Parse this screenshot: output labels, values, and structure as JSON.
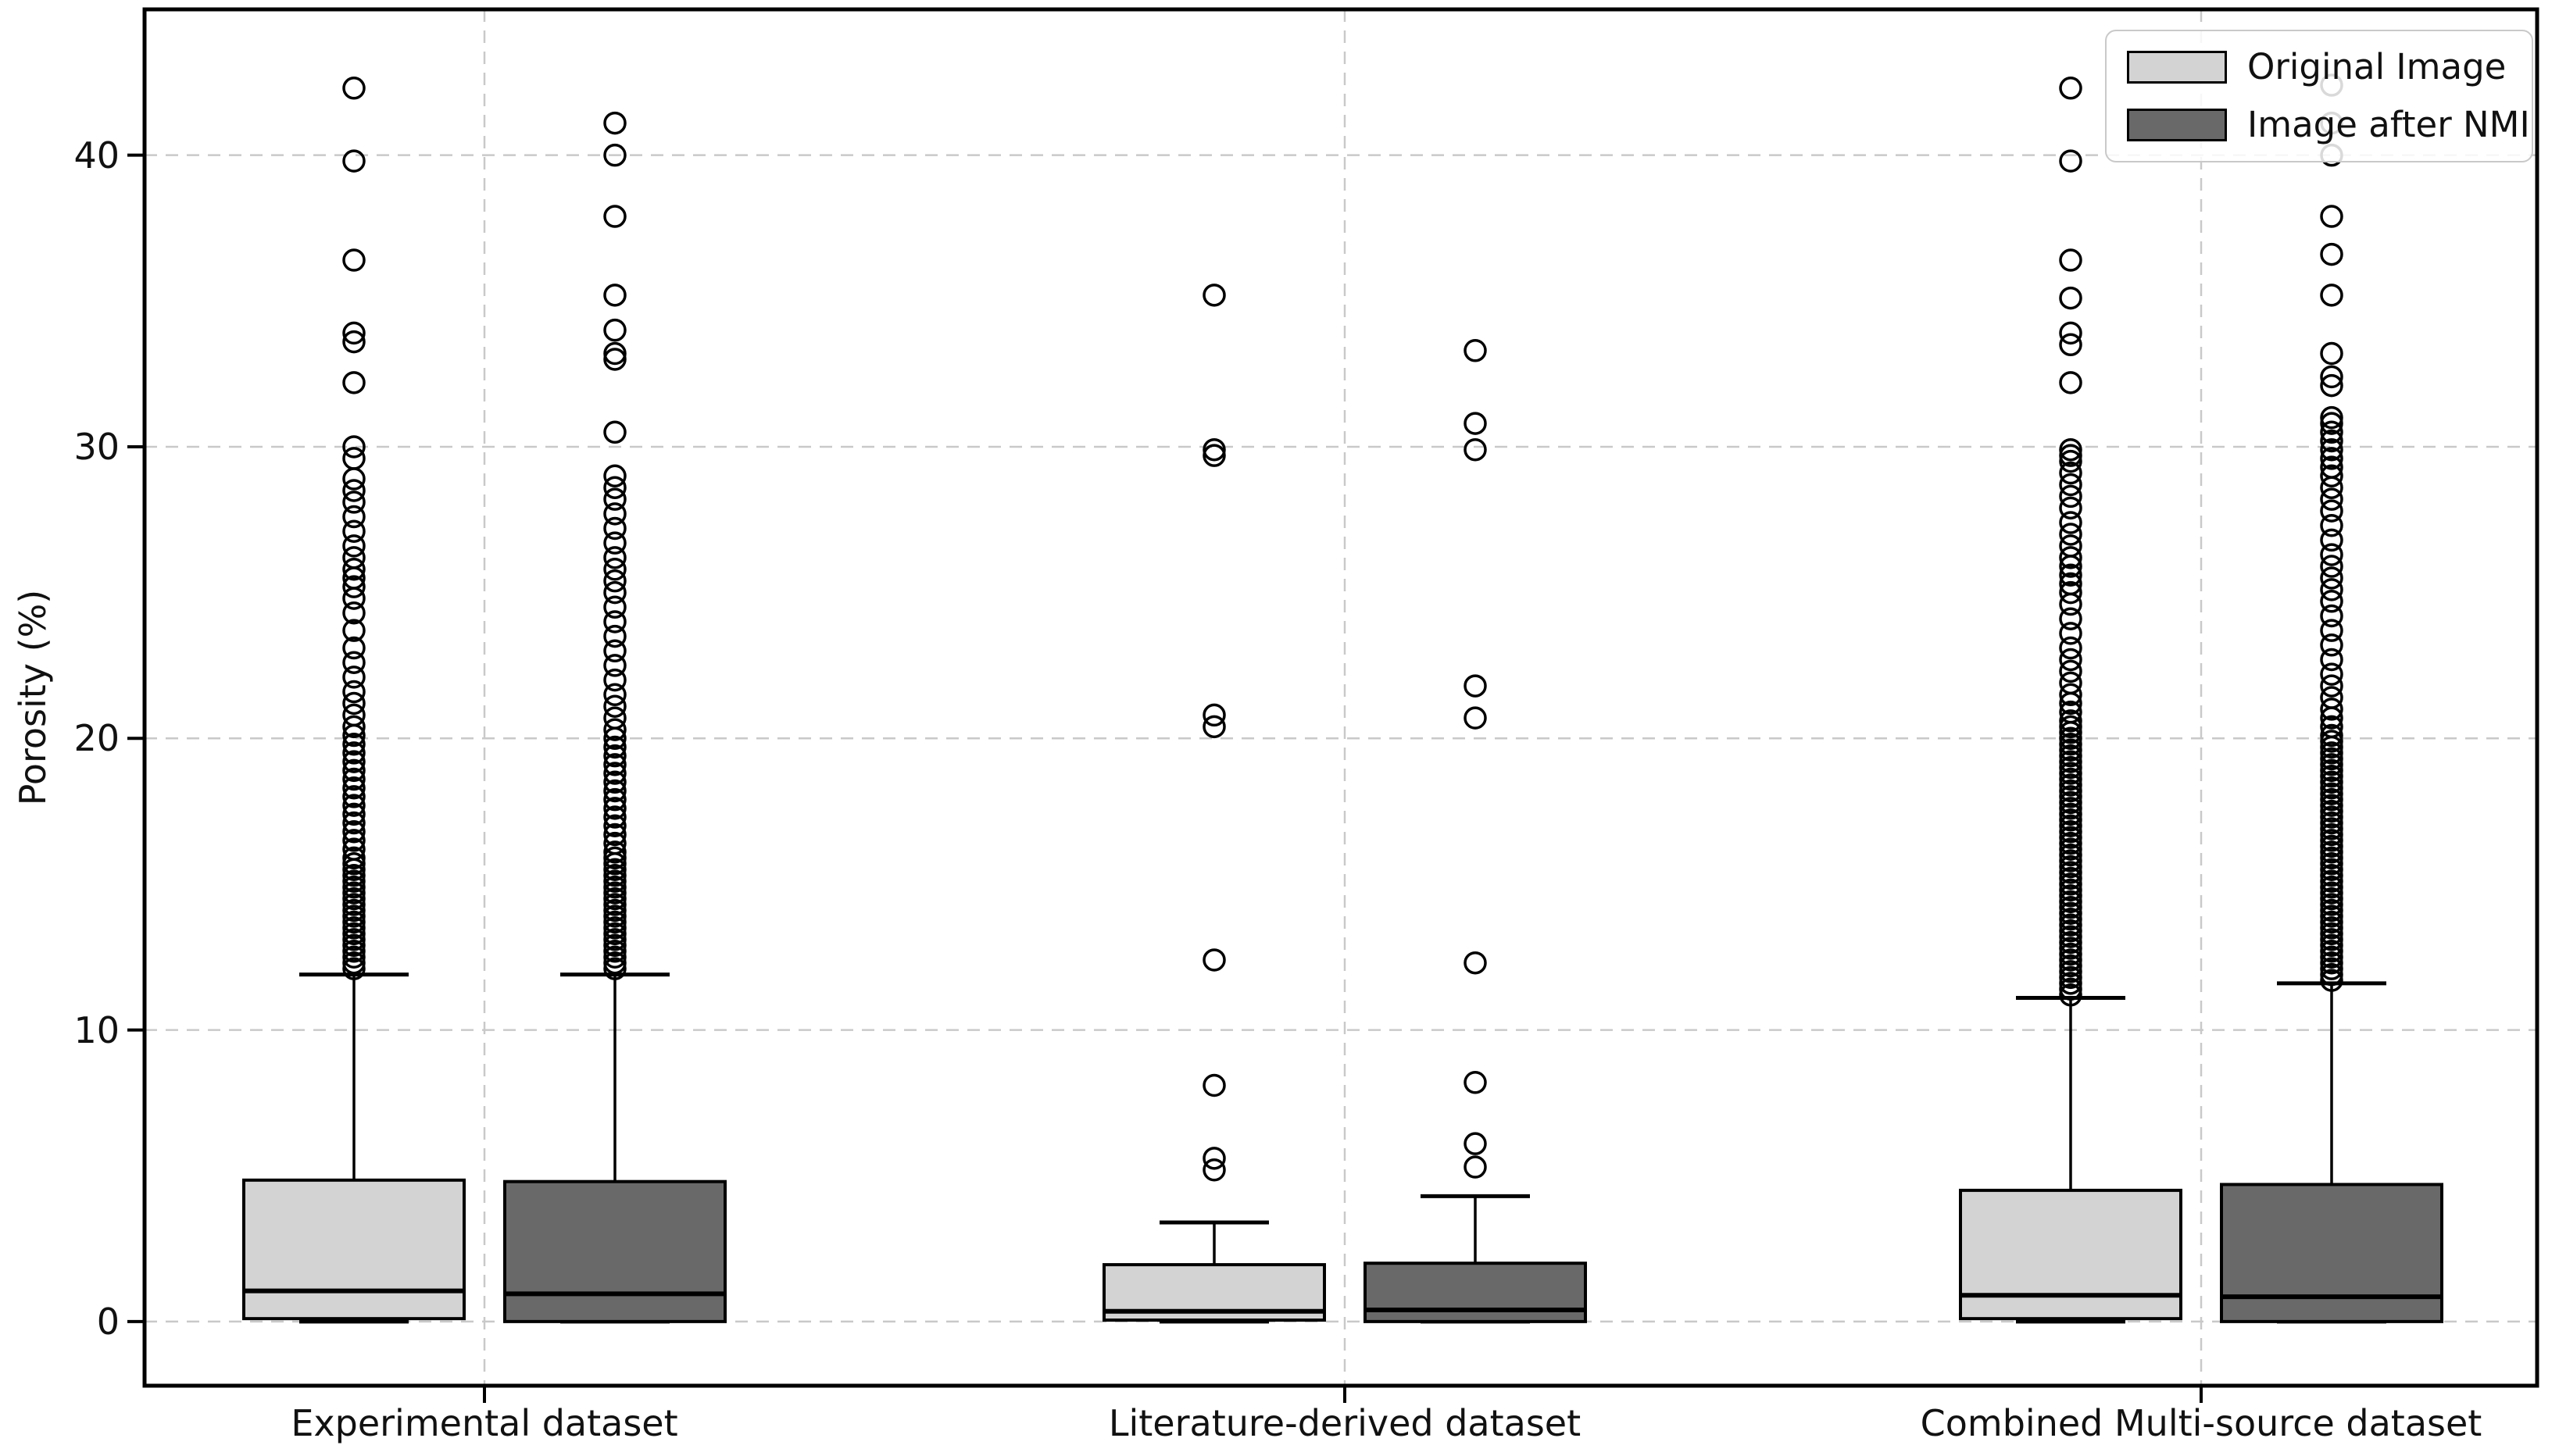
{
  "chart_data": {
    "type": "boxplot",
    "title": "",
    "ylabel": "Porosity (%)",
    "xlabel": "",
    "ylim": [
      -2.2,
      45.0
    ],
    "yticks": [
      0,
      10,
      20,
      30,
      40
    ],
    "ytick_labels": [
      "0",
      "10",
      "20",
      "30",
      "40"
    ],
    "categories": [
      "Experimental dataset",
      "Literature-derived dataset",
      "Combined Multi-source dataset"
    ],
    "grid": {
      "style": "dashed",
      "color": "#c9c9c9",
      "horizontal": true,
      "vertical": true
    },
    "legend_position": "upper right",
    "series": [
      {
        "name": "Original Image",
        "color": "#d3d3d3",
        "boxes": [
          {
            "category": "Experimental dataset",
            "whisker_low": 0.0,
            "q1": 0.1,
            "median": 1.05,
            "q3": 4.85,
            "whisker_high": 11.9,
            "outliers": [
              12.1,
              12.3,
              12.5,
              12.7,
              12.9,
              13.1,
              13.3,
              13.5,
              13.7,
              13.9,
              14.1,
              14.3,
              14.5,
              14.7,
              14.9,
              15.1,
              15.3,
              15.5,
              15.7,
              15.9,
              16.2,
              16.5,
              16.8,
              17.1,
              17.4,
              17.7,
              18.0,
              18.3,
              18.6,
              18.9,
              19.2,
              19.5,
              19.8,
              20.1,
              20.4,
              20.8,
              21.2,
              21.6,
              22.1,
              22.6,
              23.1,
              23.7,
              24.3,
              24.8,
              25.2,
              25.5,
              25.8,
              26.2,
              26.6,
              27.1,
              27.6,
              28.1,
              28.5,
              28.9,
              29.6,
              30.0,
              32.2,
              33.6,
              33.9,
              36.4,
              39.8,
              42.3
            ]
          },
          {
            "category": "Literature-derived dataset",
            "whisker_low": 0.0,
            "q1": 0.05,
            "median": 0.35,
            "q3": 1.95,
            "whisker_high": 3.4,
            "outliers": [
              5.2,
              5.6,
              8.1,
              12.4,
              20.4,
              20.8,
              29.7,
              29.9,
              35.2
            ]
          },
          {
            "category": "Combined Multi-source dataset",
            "whisker_low": 0.0,
            "q1": 0.1,
            "median": 0.9,
            "q3": 4.5,
            "whisker_high": 11.1,
            "outliers": [
              11.2,
              11.4,
              11.6,
              11.8,
              12.0,
              12.2,
              12.4,
              12.6,
              12.8,
              13.0,
              13.2,
              13.4,
              13.6,
              13.8,
              14.0,
              14.2,
              14.4,
              14.6,
              14.8,
              15.0,
              15.2,
              15.4,
              15.6,
              15.8,
              16.0,
              16.2,
              16.4,
              16.6,
              16.8,
              17.0,
              17.2,
              17.4,
              17.6,
              17.8,
              18.0,
              18.2,
              18.4,
              18.6,
              18.8,
              19.0,
              19.2,
              19.4,
              19.6,
              19.8,
              20.0,
              20.2,
              20.4,
              20.6,
              20.9,
              21.2,
              21.5,
              21.9,
              22.3,
              22.7,
              23.1,
              23.6,
              24.1,
              24.6,
              25.0,
              25.3,
              25.6,
              25.9,
              26.2,
              26.6,
              27.0,
              27.4,
              27.9,
              28.3,
              28.7,
              29.1,
              29.5,
              29.7,
              29.9,
              32.2,
              33.5,
              33.9,
              35.1,
              36.4,
              39.8,
              42.3
            ]
          }
        ]
      },
      {
        "name": "Image after NMI",
        "color": "#696969",
        "boxes": [
          {
            "category": "Experimental dataset",
            "whisker_low": 0.0,
            "q1": 0.0,
            "median": 0.95,
            "q3": 4.8,
            "whisker_high": 11.9,
            "outliers": [
              12.1,
              12.3,
              12.5,
              12.7,
              12.9,
              13.1,
              13.3,
              13.5,
              13.7,
              13.9,
              14.1,
              14.3,
              14.5,
              14.7,
              14.9,
              15.1,
              15.3,
              15.5,
              15.7,
              15.9,
              16.1,
              16.4,
              16.7,
              17.0,
              17.3,
              17.6,
              17.9,
              18.2,
              18.5,
              18.8,
              19.1,
              19.4,
              19.7,
              20.0,
              20.3,
              20.7,
              21.1,
              21.5,
              22.0,
              22.5,
              23.0,
              23.5,
              24.0,
              24.5,
              25.0,
              25.4,
              25.8,
              26.2,
              26.7,
              27.2,
              27.7,
              28.2,
              28.6,
              29.0,
              30.5,
              33.0,
              33.2,
              34.0,
              35.2,
              37.9,
              40.0,
              41.1
            ]
          },
          {
            "category": "Literature-derived dataset",
            "whisker_low": 0.0,
            "q1": 0.0,
            "median": 0.4,
            "q3": 2.0,
            "whisker_high": 4.3,
            "outliers": [
              5.3,
              6.1,
              8.2,
              12.3,
              20.7,
              21.8,
              29.9,
              30.8,
              33.3
            ]
          },
          {
            "category": "Combined Multi-source dataset",
            "whisker_low": 0.0,
            "q1": 0.0,
            "median": 0.85,
            "q3": 4.7,
            "whisker_high": 11.6,
            "outliers": [
              11.7,
              11.9,
              12.1,
              12.3,
              12.5,
              12.7,
              12.9,
              13.1,
              13.3,
              13.5,
              13.7,
              13.9,
              14.1,
              14.3,
              14.5,
              14.7,
              14.9,
              15.1,
              15.3,
              15.5,
              15.7,
              15.9,
              16.1,
              16.3,
              16.5,
              16.7,
              16.9,
              17.1,
              17.3,
              17.5,
              17.7,
              17.9,
              18.1,
              18.3,
              18.5,
              18.7,
              18.9,
              19.1,
              19.3,
              19.5,
              19.7,
              19.9,
              20.1,
              20.4,
              20.7,
              21.0,
              21.4,
              21.8,
              22.2,
              22.7,
              23.2,
              23.7,
              24.2,
              24.7,
              25.1,
              25.5,
              25.9,
              26.3,
              26.8,
              27.3,
              27.8,
              28.2,
              28.6,
              29.0,
              29.3,
              29.6,
              29.9,
              30.2,
              30.5,
              30.8,
              31.0,
              32.1,
              32.4,
              33.2,
              35.2,
              36.6,
              37.9,
              40.0,
              41.1,
              42.4
            ]
          }
        ]
      }
    ]
  }
}
